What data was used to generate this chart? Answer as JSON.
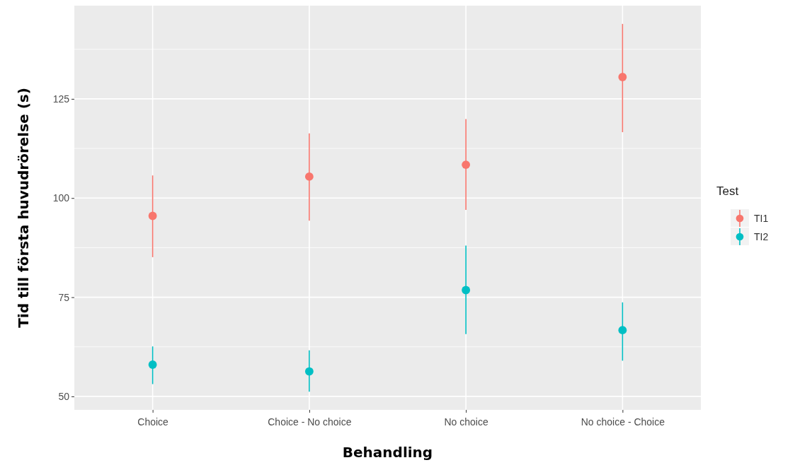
{
  "chart_data": {
    "type": "scatter",
    "xlabel": "Behandling",
    "ylabel": "Tid till första huvudrörelse (s)",
    "legend_title": "Test",
    "categories": [
      "Choice",
      "Choice - No choice",
      "No choice",
      "No choice - Choice"
    ],
    "series": [
      {
        "name": "TI1",
        "color": "#f8766d",
        "values": [
          95.5,
          105.4,
          108.4,
          130.5
        ],
        "errors": [
          [
            85.1,
            105.7
          ],
          [
            94.3,
            116.3
          ],
          [
            97.0,
            119.9
          ],
          [
            116.6,
            143.9
          ]
        ]
      },
      {
        "name": "TI2",
        "color": "#00bfc4",
        "values": [
          58.0,
          56.3,
          76.8,
          66.7
        ],
        "errors": [
          [
            53.1,
            62.6
          ],
          [
            51.2,
            61.6
          ],
          [
            65.7,
            88.0
          ],
          [
            59.0,
            73.7
          ]
        ]
      }
    ],
    "ylim": [
      46.6,
      148.5
    ],
    "yticks": [
      50,
      75,
      100,
      125
    ],
    "grid": true,
    "legend": "right",
    "marker": "circle"
  }
}
